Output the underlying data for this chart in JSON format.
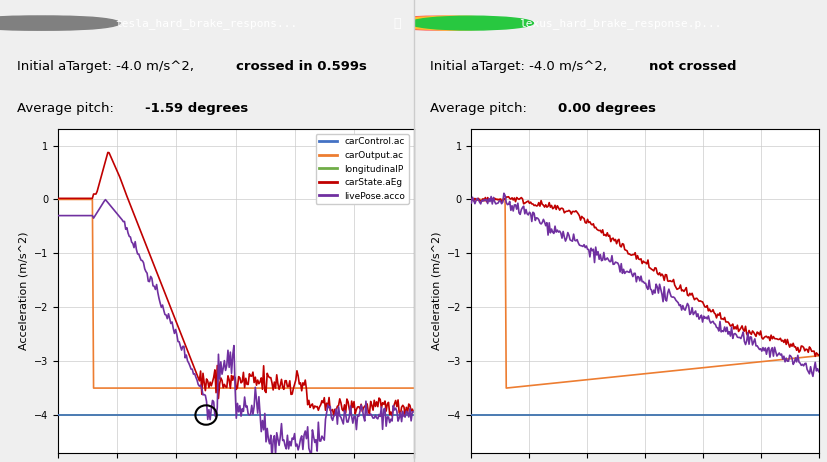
{
  "left_title_normal": "Initial aTarget: -4.0 m/s^2, ",
  "left_title_bold": "crossed in 0.599s",
  "left_subtitle_normal": "Average pitch: ",
  "left_subtitle_bold": "-1.59 degrees",
  "right_title_normal": "Initial aTarget: -4.0 m/s^2, ",
  "right_title_bold": "not crossed",
  "right_subtitle_normal": "Average pitch: ",
  "right_subtitle_bold": "0.00 degrees",
  "ylabel": "Acceleration (m/s^2)",
  "ylim": [
    -4.5,
    1.2
  ],
  "colors": {
    "carControl": "#4472C4",
    "carOutput": "#ED7D31",
    "longitudinal": "#70AD47",
    "carState": "#C00000",
    "livePose": "#7030A0"
  },
  "legend_labels": [
    "carControl.ac",
    "carOutput.ac",
    "longitudinalP",
    "carState.aEg",
    "livePose.acco"
  ],
  "bg_color": "#F2F2F2",
  "titlebar_color": "#3C3C3C",
  "window_bg": "#FFFFFF"
}
